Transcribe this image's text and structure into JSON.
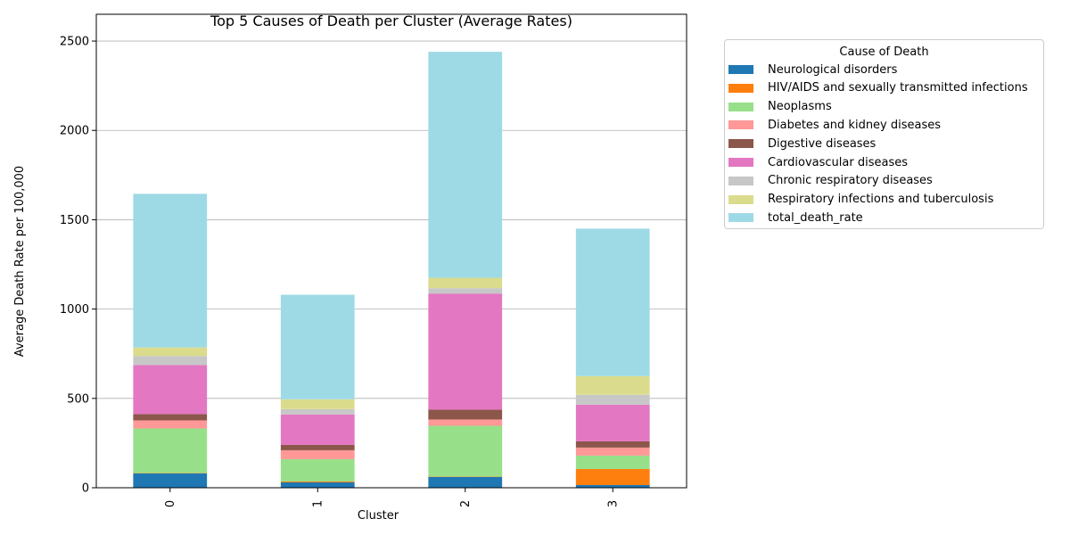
{
  "chart_data": {
    "type": "bar",
    "stacked": true,
    "title": "Top 5 Causes of Death per Cluster (Average Rates)",
    "xlabel": "Cluster",
    "ylabel": "Average Death Rate per 100,000",
    "categories": [
      "0",
      "1",
      "2",
      "3"
    ],
    "ylim": [
      0,
      2650
    ],
    "yticks": [
      0,
      500,
      1000,
      1500,
      2000,
      2500
    ],
    "grid": "horizontal",
    "legend_title": "Cause of Death",
    "legend_position": "outside-right",
    "series": [
      {
        "name": "Neurological disorders",
        "color": "#1f77b4",
        "values": [
          80,
          30,
          60,
          15
        ]
      },
      {
        "name": "HIV/AIDS and sexually transmitted infections",
        "color": "#ff7f0e",
        "values": [
          2,
          5,
          2,
          90
        ]
      },
      {
        "name": "Neoplasms",
        "color": "#98df8a",
        "values": [
          250,
          125,
          285,
          75
        ]
      },
      {
        "name": "Diabetes and kidney diseases",
        "color": "#ff9896",
        "values": [
          45,
          50,
          35,
          45
        ]
      },
      {
        "name": "Digestive diseases",
        "color": "#8c564b",
        "values": [
          35,
          30,
          55,
          35
        ]
      },
      {
        "name": "Cardiovascular diseases",
        "color": "#e377c2",
        "values": [
          275,
          170,
          650,
          205
        ]
      },
      {
        "name": "Chronic respiratory diseases",
        "color": "#c7c7c7",
        "values": [
          50,
          30,
          30,
          55
        ]
      },
      {
        "name": "Respiratory infections and tuberculosis",
        "color": "#dbdb8d",
        "values": [
          48,
          55,
          58,
          105
        ]
      },
      {
        "name": "total_death_rate",
        "color": "#9edae5",
        "values": [
          860,
          585,
          1265,
          825
        ]
      }
    ]
  }
}
